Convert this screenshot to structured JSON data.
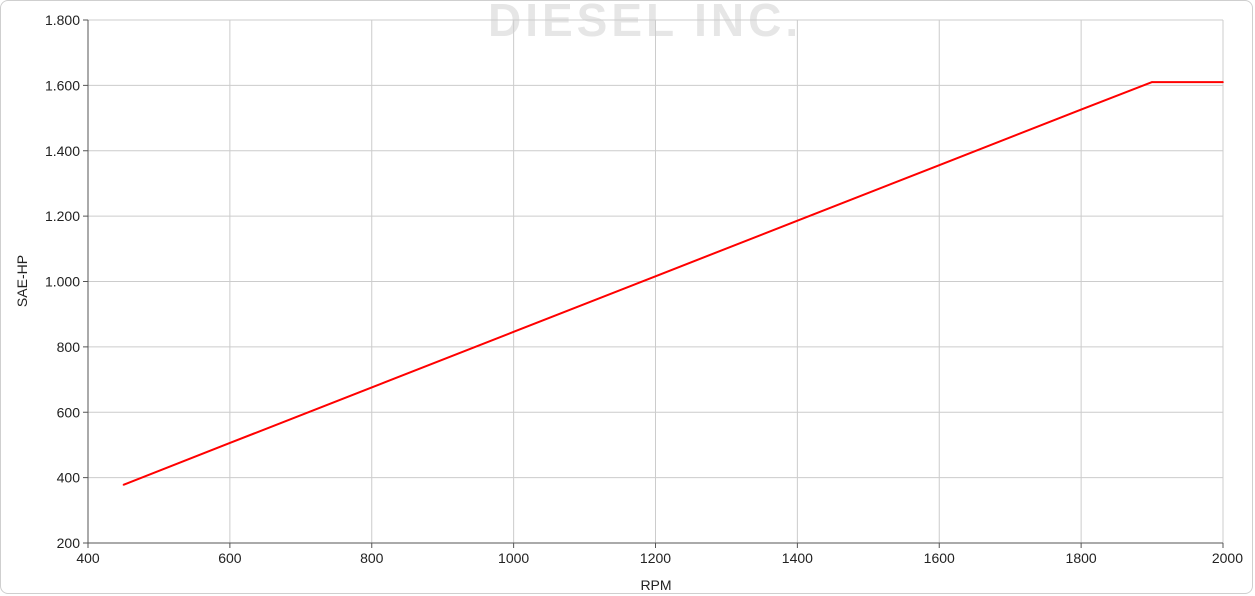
{
  "watermark": {
    "text": "DIESEL INC."
  },
  "chart_data": {
    "type": "line",
    "xlabel": "RPM",
    "ylabel": "SAE-HP",
    "xlim": [
      400,
      2000
    ],
    "ylim": [
      200,
      1800
    ],
    "x_ticks": [
      400,
      600,
      800,
      1000,
      1200,
      1400,
      1600,
      1800,
      2000
    ],
    "x_tick_labels": [
      "400",
      "600",
      "800",
      "1000",
      "1200",
      "1400",
      "1600",
      "1800",
      "2000"
    ],
    "y_ticks": [
      200,
      400,
      600,
      800,
      1000,
      1200,
      1400,
      1600,
      1800
    ],
    "y_tick_labels": [
      "200",
      "400",
      "600",
      "800",
      "1.000",
      "1.200",
      "1.400",
      "1.600",
      "1.800"
    ],
    "grid": true,
    "legend": "none",
    "series": [
      {
        "color": "#ff0000",
        "points": [
          {
            "x": 450,
            "y": 378
          },
          {
            "x": 600,
            "y": 506
          },
          {
            "x": 800,
            "y": 676
          },
          {
            "x": 1000,
            "y": 846
          },
          {
            "x": 1200,
            "y": 1016
          },
          {
            "x": 1400,
            "y": 1186
          },
          {
            "x": 1600,
            "y": 1356
          },
          {
            "x": 1800,
            "y": 1526
          },
          {
            "x": 1900,
            "y": 1610
          },
          {
            "x": 2000,
            "y": 1610
          }
        ]
      }
    ]
  }
}
